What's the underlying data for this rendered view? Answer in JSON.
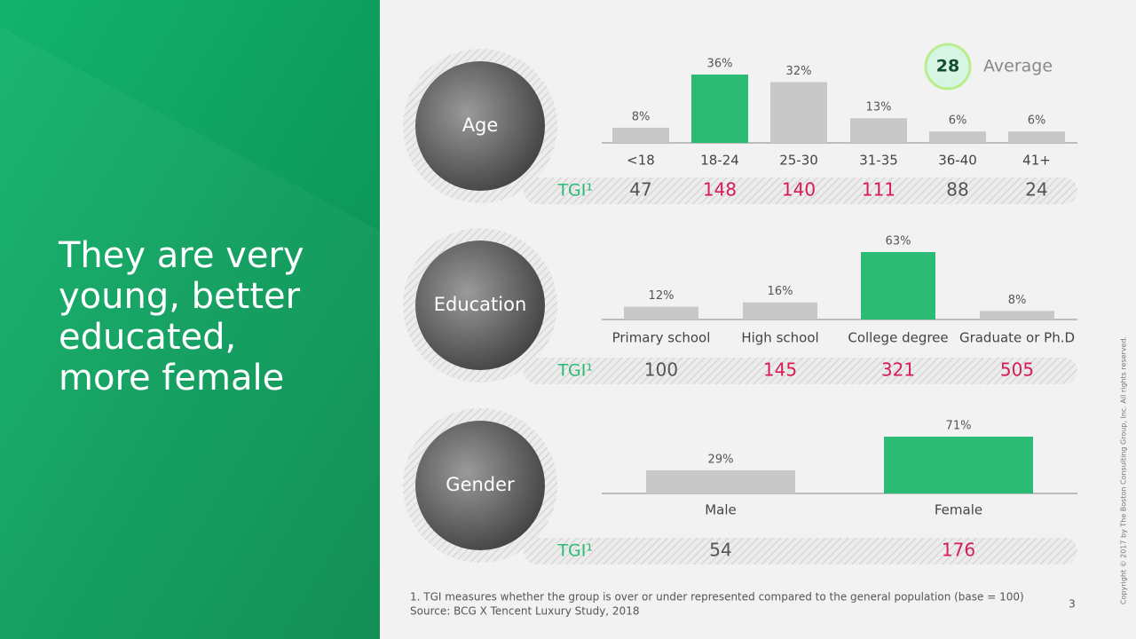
{
  "headline": [
    "They are very",
    "young, better",
    "educated,",
    "more female"
  ],
  "chart_data": [
    {
      "type": "bar",
      "title": "Age",
      "categories": [
        "<18",
        "18-24",
        "25-30",
        "31-35",
        "36-40",
        "41+"
      ],
      "values": [
        8,
        36,
        32,
        13,
        6,
        6
      ],
      "value_labels": [
        "8%",
        "36%",
        "32%",
        "13%",
        "6%",
        "6%"
      ],
      "colors": [
        "#c8c8c8",
        "#2bbb74",
        "#c8c8c8",
        "#c8c8c8",
        "#c8c8c8",
        "#c8c8c8"
      ],
      "average": 28,
      "average_label": "Average",
      "tgi_label": "TGI¹",
      "tgi_values": [
        47,
        148,
        140,
        111,
        88,
        24
      ],
      "tgi_colors": [
        "#555555",
        "#d81b55",
        "#d81b55",
        "#d81b55",
        "#555555",
        "#555555"
      ]
    },
    {
      "type": "bar",
      "title": "Education",
      "categories": [
        "Primary school",
        "High school",
        "College degree",
        "Graduate or Ph.D"
      ],
      "values": [
        12,
        16,
        63,
        8
      ],
      "value_labels": [
        "12%",
        "16%",
        "63%",
        "8%"
      ],
      "colors": [
        "#c8c8c8",
        "#c8c8c8",
        "#2bbb74",
        "#c8c8c8"
      ],
      "tgi_label": "TGI¹",
      "tgi_values": [
        100,
        145,
        321,
        505
      ],
      "tgi_colors": [
        "#555555",
        "#d81b55",
        "#d81b55",
        "#d81b55"
      ]
    },
    {
      "type": "bar",
      "title": "Gender",
      "categories": [
        "Male",
        "Female"
      ],
      "values": [
        29,
        71
      ],
      "value_labels": [
        "29%",
        "71%"
      ],
      "colors": [
        "#c8c8c8",
        "#2bbb74"
      ],
      "tgi_label": "TGI¹",
      "tgi_values": [
        54,
        176
      ],
      "tgi_colors": [
        "#555555",
        "#d81b55"
      ]
    }
  ],
  "footnote": [
    "1. TGI measures whether the group is over or under represented compared to the general population (base = 100)",
    "Source: BCG X Tencent Luxury Study, 2018"
  ],
  "page_number": "3",
  "copyright": "Copyright © 2017 by The Boston Consulting Group, Inc. All rights reserved."
}
